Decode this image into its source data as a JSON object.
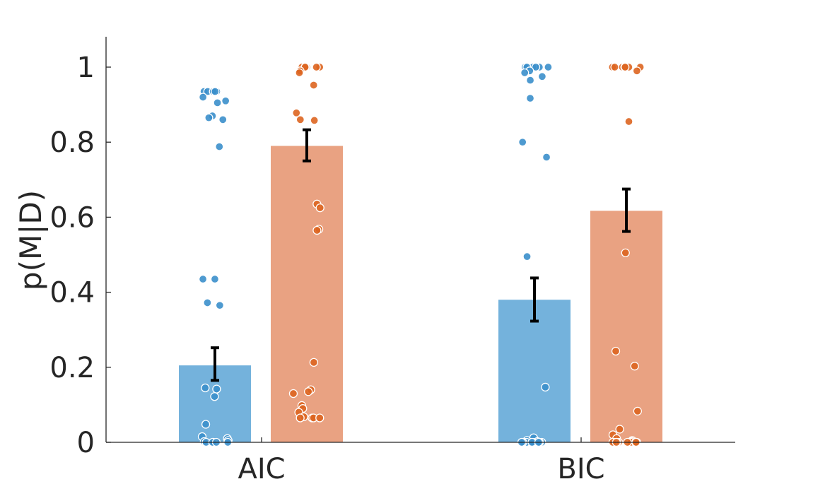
{
  "chart_data": {
    "type": "bar",
    "categories": [
      "AIC",
      "BIC"
    ],
    "xlabel": "",
    "ylabel": "p(M|D)",
    "ylim": [
      0,
      1.07
    ],
    "yticks": [
      0,
      0.2,
      0.4,
      0.6,
      0.8,
      1
    ],
    "ytick_labels": [
      "0",
      "0.2",
      "0.4",
      "0.6",
      "0.8",
      "1"
    ],
    "grid": false,
    "legend": "none",
    "series": [
      {
        "color": "#74b2dc",
        "point_color": "#3b8fcb",
        "values": [
          0.205,
          0.38
        ],
        "error": [
          [
            0.165,
            0.252
          ],
          [
            0.323,
            0.438
          ]
        ],
        "points": [
          [
            0.935,
            0.935,
            0.935,
            0.935,
            0.935,
            0.935,
            0.92,
            0.91,
            0.905,
            0.87,
            0.865,
            0.86,
            0.788,
            0.435,
            0.435,
            0.372,
            0.365,
            0.145,
            0.142,
            0.122,
            0.048,
            0.015,
            0.01,
            0.005,
            0.002,
            0.0,
            0.0,
            0.0,
            0.0,
            0.0
          ],
          [
            1.0,
            1.0,
            1.0,
            1.0,
            1.0,
            1.0,
            1.0,
            0.99,
            0.985,
            0.975,
            0.965,
            0.917,
            0.8,
            0.76,
            0.495,
            0.147,
            0.012,
            0.005,
            0.002,
            0.0,
            0.0,
            0.0,
            0.0,
            0.0,
            0.0,
            0.0,
            0.0,
            0.0,
            0.0,
            0.0
          ]
        ]
      },
      {
        "color": "#e9a282",
        "point_color": "#dd6520",
        "values": [
          0.79,
          0.617
        ],
        "error": [
          [
            0.75,
            0.833
          ],
          [
            0.562,
            0.675
          ]
        ],
        "points": [
          [
            1.0,
            1.0,
            1.0,
            1.0,
            1.0,
            1.0,
            1.0,
            1.0,
            0.99,
            0.985,
            0.952,
            0.878,
            0.86,
            0.858,
            0.635,
            0.625,
            0.568,
            0.565,
            0.213,
            0.14,
            0.135,
            0.13,
            0.098,
            0.09,
            0.08,
            0.068,
            0.065,
            0.065,
            0.065,
            0.065
          ],
          [
            1.0,
            1.0,
            1.0,
            1.0,
            1.0,
            1.0,
            1.0,
            0.99,
            0.855,
            0.505,
            0.243,
            0.203,
            0.083,
            0.035,
            0.02,
            0.01,
            0.005,
            0.002,
            0.0,
            0.0,
            0.0,
            0.0,
            0.0,
            0.0,
            0.0,
            0.0,
            0.0,
            0.0,
            0.0,
            0.0
          ]
        ]
      }
    ]
  }
}
